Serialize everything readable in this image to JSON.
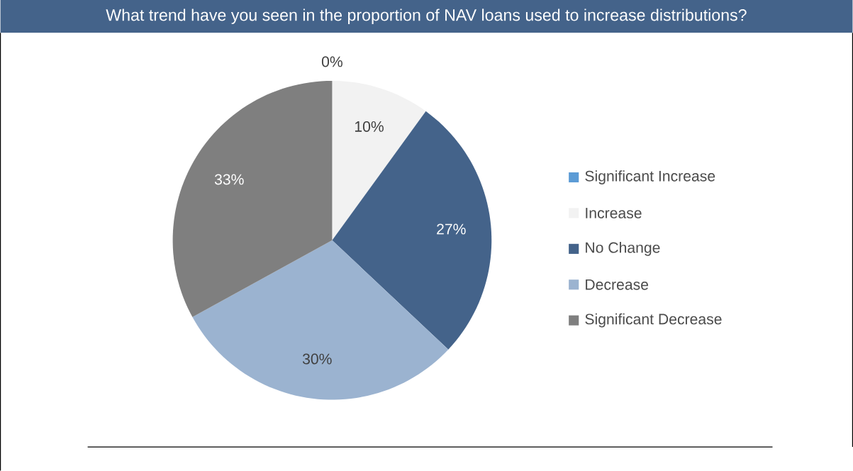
{
  "chart_data": {
    "type": "pie",
    "title": "What trend have you seen in the proportion of NAV loans used to increase distributions?",
    "categories": [
      "Significant Increase",
      "Increase",
      "No Change",
      "Decrease",
      "Significant Decrease"
    ],
    "values": [
      0,
      10,
      27,
      30,
      33
    ],
    "value_labels": [
      "0%",
      "10%",
      "27%",
      "30%",
      "33%"
    ],
    "colors": [
      "#5b9bd5",
      "#f2f2f2",
      "#44638a",
      "#9bb3d0",
      "#7f7f7f"
    ],
    "legend": "right"
  }
}
